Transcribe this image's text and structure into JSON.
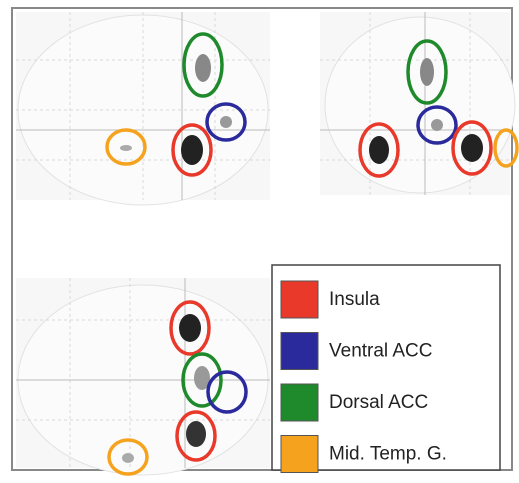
{
  "legend": {
    "items": [
      {
        "label": "Insula",
        "color": "#e8392a"
      },
      {
        "label": "Ventral ACC",
        "color": "#2a2a9c"
      },
      {
        "label": "Dorsal ACC",
        "color": "#1e8a2c"
      },
      {
        "label": "Mid. Temp. G.",
        "color": "#f5a21e"
      }
    ]
  }
}
